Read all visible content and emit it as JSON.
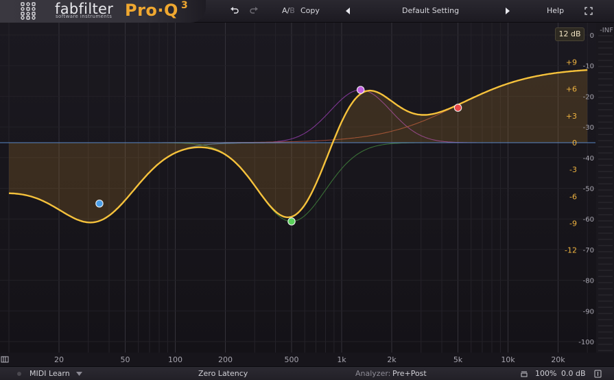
{
  "brand": {
    "name": "fabfilter",
    "tagline": "software instruments",
    "product": "Pro·Q",
    "version": "3"
  },
  "toolbar": {
    "ab_a": "A/",
    "ab_b": "B",
    "copy_label": "Copy",
    "preset_name": "Default Setting",
    "help_label": "Help"
  },
  "range_button": "12 dB",
  "gain_scale": [
    "+9",
    "+6",
    "+3",
    "0",
    "-3",
    "-6",
    "-9",
    "-12"
  ],
  "spectrum_scale": [
    "-INF",
    "0",
    "-10",
    "-20",
    "-30",
    "-40",
    "-50",
    "-60",
    "-70",
    "-80",
    "-90",
    "-100"
  ],
  "freq_labels": [
    "20",
    "50",
    "100",
    "200",
    "500",
    "1k",
    "2k",
    "5k",
    "10k",
    "20k"
  ],
  "bottom": {
    "midi_learn": "MIDI Learn",
    "latency": "Zero Latency",
    "analyzer_label": "Analyzer:",
    "analyzer_value": "Pre+Post",
    "zoom": "100%",
    "output_gain": "0.0 dB"
  },
  "colors": {
    "accent": "#f0a830",
    "master_curve": "#f6c23c",
    "band_blue": "#4a9ee8",
    "band_green": "#5ad05a",
    "band_purple": "#c060e0",
    "band_red": "#e84848"
  },
  "bands": [
    {
      "id": 1,
      "freq_hz": 35,
      "gain_db": -6.8,
      "color": "#4a9ee8",
      "shape": "bell"
    },
    {
      "id": 2,
      "freq_hz": 500,
      "gain_db": -8.8,
      "color": "#5ad05a",
      "shape": "bell"
    },
    {
      "id": 3,
      "freq_hz": 1300,
      "gain_db": 5.9,
      "color": "#c060e0",
      "shape": "bell"
    },
    {
      "id": 4,
      "freq_hz": 5000,
      "gain_db": 3.9,
      "color": "#e84848",
      "shape": "high-shelf"
    }
  ]
}
